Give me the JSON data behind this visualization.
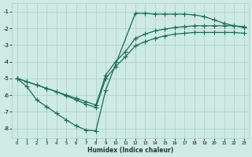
{
  "xlabel": "Humidex (Indice chaleur)",
  "xlim_left": -0.5,
  "xlim_right": 23.5,
  "ylim_bottom": -8.6,
  "ylim_top": -0.5,
  "yticks": [
    -8,
    -7,
    -6,
    -5,
    -4,
    -3,
    -2,
    -1
  ],
  "xticks": [
    0,
    1,
    2,
    3,
    4,
    5,
    6,
    7,
    8,
    9,
    10,
    11,
    12,
    13,
    14,
    15,
    16,
    17,
    18,
    19,
    20,
    21,
    22,
    23
  ],
  "bg_color": "#ceeae4",
  "grid_color": "#a8cfc8",
  "line_color": "#1a6b5a",
  "line1_x": [
    0,
    1,
    2,
    3,
    4,
    5,
    6,
    7,
    8,
    9,
    12,
    13,
    14,
    15,
    16,
    17,
    18,
    19,
    20,
    21,
    22,
    23
  ],
  "line1_y": [
    -5.0,
    -5.5,
    -6.3,
    -6.7,
    -7.1,
    -7.5,
    -7.85,
    -8.1,
    -8.15,
    -5.7,
    -1.1,
    -1.1,
    -1.15,
    -1.15,
    -1.15,
    -1.15,
    -1.2,
    -1.3,
    -1.5,
    -1.7,
    -1.85,
    -1.95
  ],
  "line2_x": [
    0,
    1,
    2,
    3,
    4,
    5,
    6,
    7,
    8,
    9,
    10,
    11,
    12,
    13,
    14,
    15,
    16,
    17,
    18,
    19,
    20,
    21,
    22,
    23
  ],
  "line2_y": [
    -5.0,
    -5.2,
    -5.4,
    -5.6,
    -5.8,
    -6.0,
    -6.2,
    -6.4,
    -6.6,
    -4.8,
    -4.0,
    -3.4,
    -2.6,
    -2.35,
    -2.15,
    -2.05,
    -1.95,
    -1.9,
    -1.85,
    -1.85,
    -1.85,
    -1.85,
    -1.85,
    -1.9
  ],
  "line3_x": [
    0,
    1,
    2,
    3,
    4,
    5,
    6,
    7,
    8,
    9,
    10,
    11,
    12,
    13,
    14,
    15,
    16,
    17,
    18,
    19,
    20,
    21,
    22,
    23
  ],
  "line3_y": [
    -5.0,
    -5.2,
    -5.4,
    -5.6,
    -5.8,
    -6.05,
    -6.3,
    -6.55,
    -6.75,
    -5.0,
    -4.3,
    -3.7,
    -3.05,
    -2.8,
    -2.6,
    -2.45,
    -2.35,
    -2.3,
    -2.25,
    -2.25,
    -2.25,
    -2.25,
    -2.25,
    -2.3
  ]
}
